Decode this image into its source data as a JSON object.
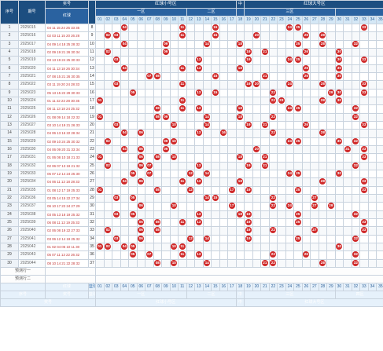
{
  "headers": {
    "seq": "序号",
    "period_short": "期号",
    "sort": "排序",
    "numbers": "奖号",
    "red_ball": "红球",
    "blue_ball": "篮球",
    "red_small": "红球小号区",
    "red_big": "红球大号区",
    "middle": "中",
    "zone1": "一区",
    "zone2": "二区",
    "zone3": "三区",
    "zone4": "四区"
  },
  "cols": [
    "01",
    "02",
    "03",
    "04",
    "05",
    "06",
    "07",
    "08",
    "09",
    "10",
    "11",
    "12",
    "13",
    "14",
    "15",
    "16",
    "17",
    "18",
    "19",
    "20",
    "21",
    "22",
    "23",
    "24",
    "25",
    "26",
    "27",
    "28",
    "29",
    "30",
    "31",
    "32",
    "33",
    "34",
    "35"
  ],
  "predict_labels": [
    "预测行一",
    "预测行二"
  ],
  "rows": [
    {
      "seq": "1",
      "period": "2025015",
      "nums": "04 11 15 24 25 33 35",
      "sum": "8",
      "hits": [
        "04",
        "11",
        "15",
        "24",
        "25",
        "33"
      ]
    },
    {
      "seq": "2",
      "period": "2025016",
      "nums": "02 03 11 15 20 26 28",
      "sum": "9",
      "hits": [
        "02",
        "03",
        "11",
        "15",
        "20",
        "26",
        "28"
      ]
    },
    {
      "seq": "3",
      "period": "2025017",
      "nums": "04 09 14 18 25 28 32",
      "sum": "10",
      "hits": [
        "04",
        "09",
        "14",
        "18",
        "25",
        "28",
        "32"
      ]
    },
    {
      "seq": "4",
      "period": "2025018",
      "nums": "02 09 19 21 26 30 34",
      "sum": "11",
      "hits": [
        "02",
        "09",
        "19",
        "21",
        "26",
        "30"
      ]
    },
    {
      "seq": "5",
      "period": "2025019",
      "nums": "03 13 19 24 25 30 33",
      "sum": "12",
      "hits": [
        "03",
        "13",
        "19",
        "24",
        "25",
        "30",
        "33"
      ]
    },
    {
      "seq": "6",
      "period": "2025020",
      "nums": "04 11 13 18 26 30 34",
      "sum": "13",
      "hits": [
        "04",
        "11",
        "13",
        "18",
        "26",
        "30"
      ]
    },
    {
      "seq": "7",
      "period": "2025021",
      "nums": "07 08 15 21 26 30 35",
      "sum": "14",
      "hits": [
        "07",
        "08",
        "15",
        "21",
        "26",
        "30"
      ]
    },
    {
      "seq": "8",
      "period": "2025022",
      "nums": "03 11 19 20 24 28 33",
      "sum": "15",
      "hits": [
        "03",
        "11",
        "19",
        "20",
        "24",
        "28",
        "33"
      ]
    },
    {
      "seq": "9",
      "period": "2025023",
      "nums": "05 13 15 22 29 30 33",
      "sum": "16",
      "hits": [
        "05",
        "13",
        "15",
        "22",
        "29",
        "30",
        "33"
      ]
    },
    {
      "seq": "10",
      "period": "2025024",
      "nums": "01 11 22 23 28 30 35",
      "sum": "17",
      "hits": [
        "01",
        "11",
        "22",
        "23",
        "28",
        "30"
      ]
    },
    {
      "seq": "11",
      "period": "2025025",
      "nums": "08 11 13 18 24 25 32",
      "sum": "18",
      "hits": [
        "08",
        "11",
        "13",
        "18",
        "24",
        "25",
        "32"
      ]
    },
    {
      "seq": "12",
      "period": "2025026",
      "nums": "01 08 09 14 18 22 32",
      "sum": "19",
      "hits": [
        "01",
        "08",
        "09",
        "14",
        "18",
        "22",
        "32"
      ]
    },
    {
      "seq": "13",
      "period": "2025027",
      "nums": "03 10 14 19 21 26 33",
      "sum": "20",
      "hits": [
        "03",
        "10",
        "14",
        "19",
        "21",
        "26",
        "33"
      ]
    },
    {
      "seq": "14",
      "period": "2025028",
      "nums": "04 06 13 16 22 28 34",
      "sum": "21",
      "hits": [
        "04",
        "06",
        "13",
        "16",
        "22",
        "28"
      ]
    },
    {
      "seq": "15",
      "period": "2025029",
      "nums": "02 09 10 24 25 30 32",
      "sum": "22",
      "hits": [
        "02",
        "09",
        "10",
        "24",
        "25",
        "30",
        "32"
      ]
    },
    {
      "seq": "16",
      "period": "2025030",
      "nums": "04 06 09 20 31 33 34",
      "sum": "23",
      "hits": [
        "04",
        "06",
        "09",
        "20",
        "31",
        "33"
      ]
    },
    {
      "seq": "17",
      "period": "2025031",
      "nums": "01 06 08 10 18 21 33",
      "sum": "24",
      "hits": [
        "01",
        "06",
        "08",
        "10",
        "18",
        "21",
        "33"
      ]
    },
    {
      "seq": "18",
      "period": "2025032",
      "nums": "02 06 07 13 19 21 32",
      "sum": "25",
      "hits": [
        "02",
        "06",
        "07",
        "13",
        "19",
        "21",
        "32"
      ]
    },
    {
      "seq": "19",
      "period": "2025033",
      "nums": "05 07 12 14 24 25 30",
      "sum": "26",
      "hits": [
        "05",
        "07",
        "12",
        "14",
        "24",
        "25",
        "30"
      ]
    },
    {
      "seq": "20",
      "period": "2025034",
      "nums": "04 06 11 13 18 28 33",
      "sum": "27",
      "hits": [
        "04",
        "06",
        "11",
        "13",
        "18",
        "28",
        "33"
      ]
    },
    {
      "seq": "21",
      "period": "2025035",
      "nums": "01 08 12 17 19 25 33",
      "sum": "28",
      "hits": [
        "01",
        "08",
        "12",
        "17",
        "19",
        "25",
        "33"
      ]
    },
    {
      "seq": "22",
      "period": "2025036",
      "nums": "03 05 14 15 22 27 34",
      "sum": "29",
      "hits": [
        "03",
        "05",
        "14",
        "15",
        "22",
        "27"
      ]
    },
    {
      "seq": "23",
      "period": "2025037",
      "nums": "06 10 17 22 24 27 29",
      "sum": "30",
      "hits": [
        "06",
        "10",
        "17",
        "22",
        "24",
        "27",
        "29"
      ]
    },
    {
      "seq": "24",
      "period": "2025038",
      "nums": "03 05 13 18 19 25 32",
      "sum": "31",
      "hits": [
        "03",
        "05",
        "13",
        "18",
        "19",
        "25",
        "32"
      ]
    },
    {
      "seq": "25",
      "period": "2025039",
      "nums": "06 08 11 13 19 25 33",
      "sum": "32",
      "hits": [
        "06",
        "08",
        "11",
        "13",
        "19",
        "25",
        "33"
      ]
    },
    {
      "seq": "26",
      "period": "2025040",
      "nums": "02 06 08 19 22 27 33",
      "sum": "33",
      "hits": [
        "02",
        "06",
        "08",
        "19",
        "22",
        "27",
        "33"
      ]
    },
    {
      "seq": "27",
      "period": "2025041",
      "nums": "03 06 12 14 19 25 32",
      "sum": "34",
      "hits": [
        "03",
        "06",
        "12",
        "14",
        "19",
        "25",
        "32"
      ]
    },
    {
      "seq": "28",
      "period": "2025042",
      "nums": "01 02 04 05 10 11 30",
      "sum": "35",
      "hits": [
        "01",
        "02",
        "04",
        "05",
        "10",
        "11",
        "30"
      ]
    },
    {
      "seq": "29",
      "period": "2025043",
      "nums": "05 07 11 13 22 26 32",
      "sum": "36",
      "hits": [
        "05",
        "07",
        "11",
        "13",
        "22",
        "26",
        "32"
      ]
    },
    {
      "seq": "30",
      "period": "2025044",
      "nums": "08 10 14 21 22 28 32",
      "sum": "37",
      "hits": [
        "08",
        "10",
        "14",
        "21",
        "22",
        "28",
        "32"
      ]
    }
  ],
  "colors": {
    "header": "#1c4e80",
    "ball": "#d02a2a",
    "light": "#d5e8f6"
  }
}
